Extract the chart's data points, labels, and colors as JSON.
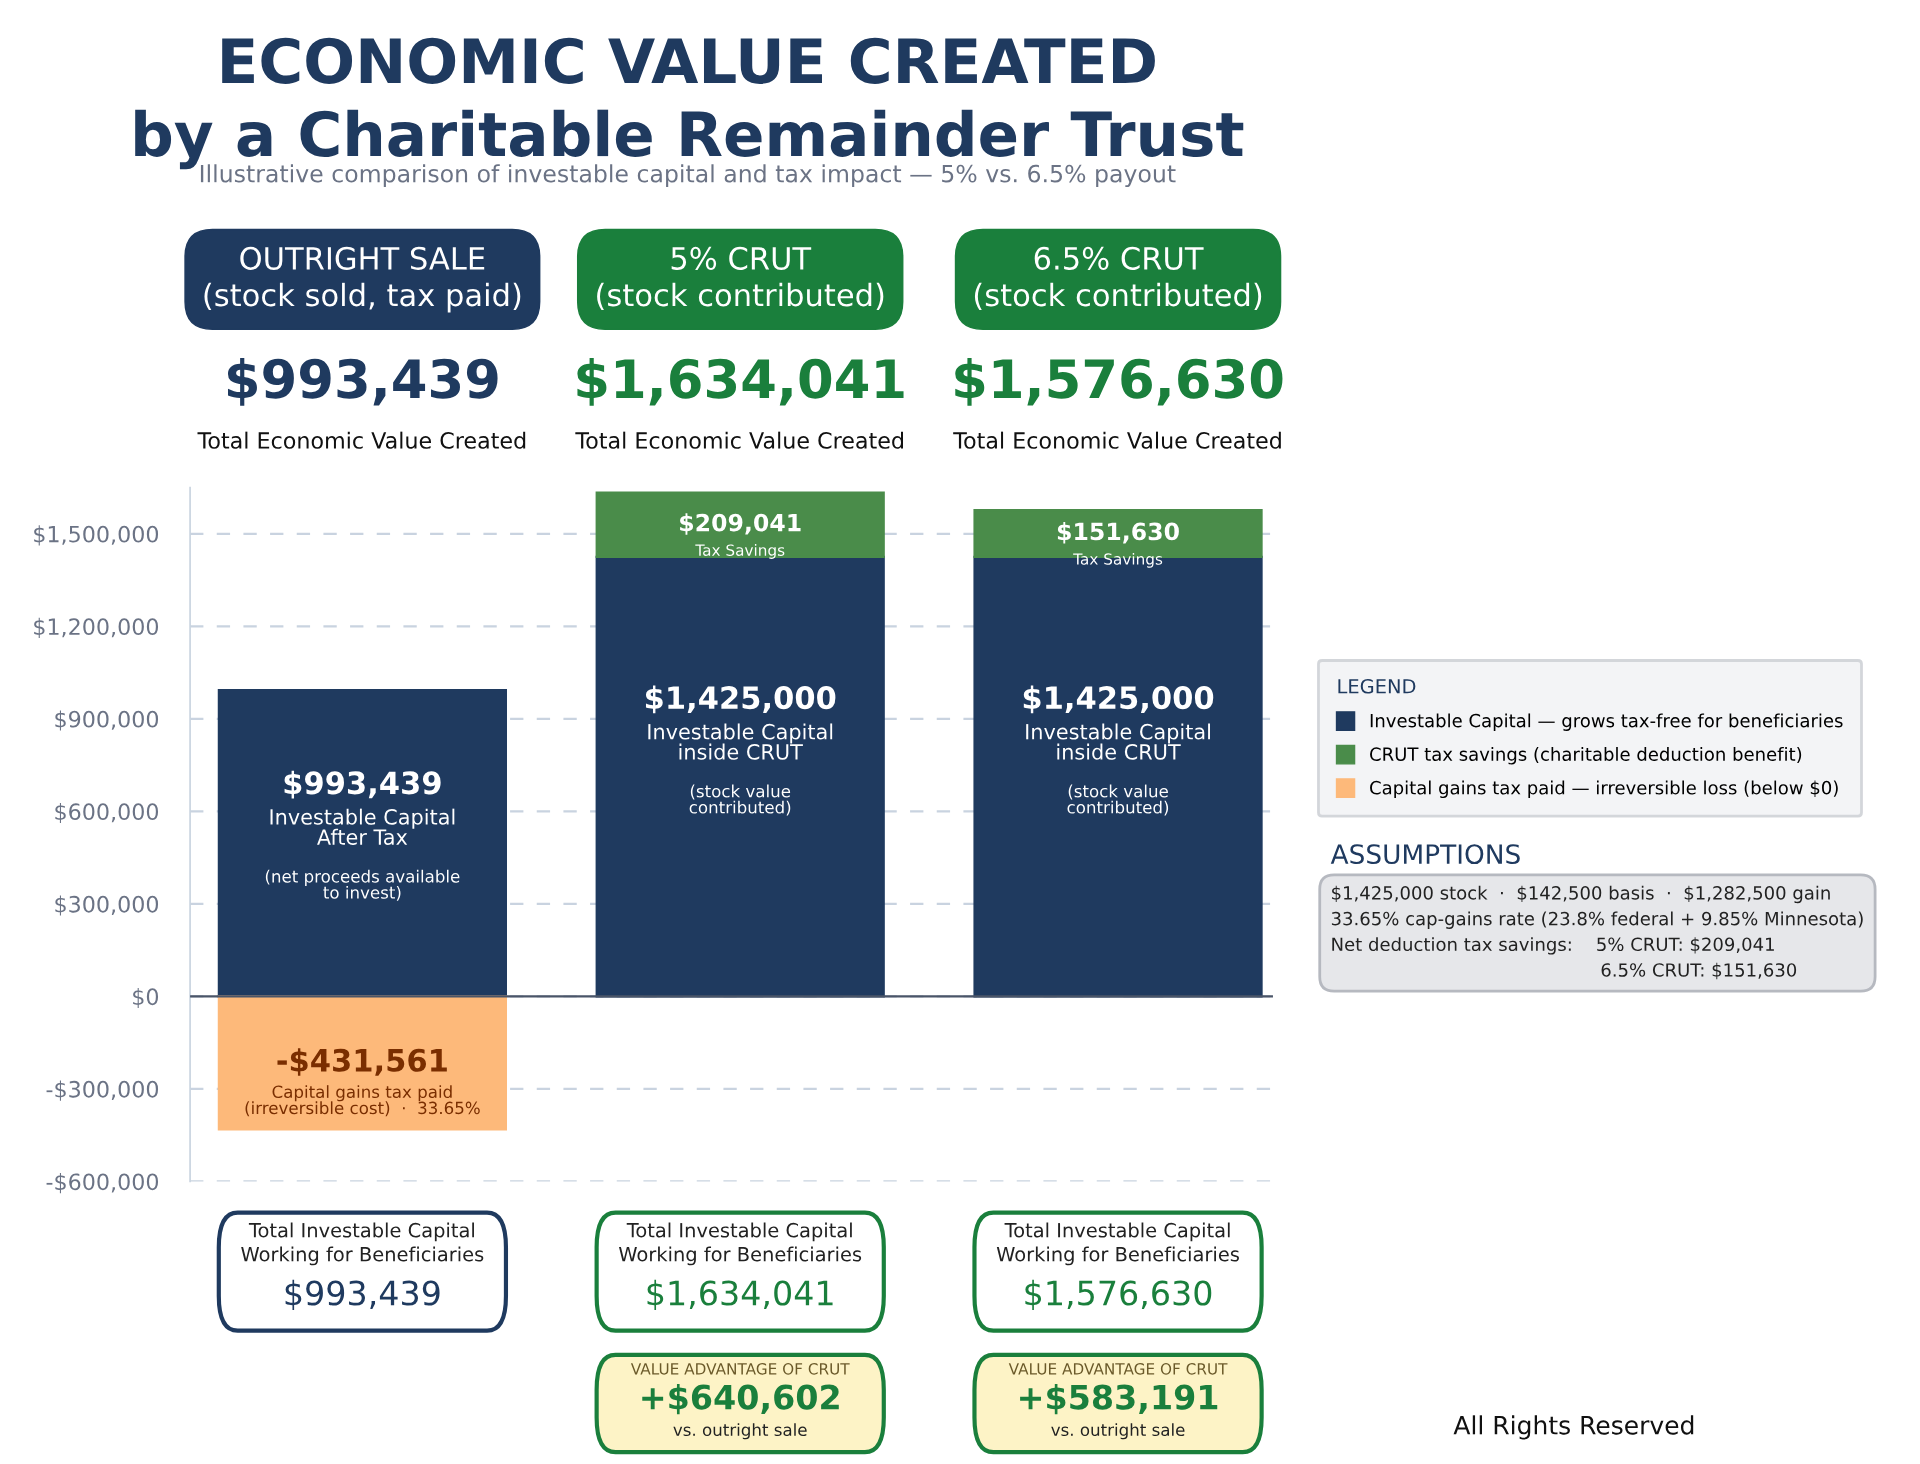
{
  "chart_data": {
    "type": "bar",
    "stacked": true,
    "title": "ECONOMIC VALUE CREATED\nby a Charitable Remainder Trust",
    "subtitle": "Illustrative comparison of investable capital and tax impact — 5% vs. 6.5% payout",
    "categories": [
      "OUTRIGHT SALE\n(stock sold, tax paid)",
      "5% CRUT\n(stock contributed)",
      "6.5% CRUT\n(stock contributed)"
    ],
    "series": [
      {
        "name": "Investable Capital — grows tax-free for beneficiaries",
        "color": "#1f3a5f",
        "values": [
          993439,
          1425000,
          1425000
        ],
        "value_labels": [
          "$993,439",
          "$1,425,000",
          "$1,425,000"
        ]
      },
      {
        "name": "CRUT tax savings (charitable deduction benefit)",
        "color": "#4a8c4a",
        "values": [
          null,
          209041,
          151630
        ],
        "value_labels": [
          null,
          "$209,041",
          "$151,630"
        ]
      },
      {
        "name": "Capital gains tax paid — irreversible loss (below $0)",
        "color": "#fdb97a",
        "values": [
          -431561,
          null,
          null
        ],
        "value_labels": [
          "-$431,561",
          null,
          null
        ]
      }
    ],
    "ylim": [
      -600000,
      1650000
    ],
    "yticks": [
      {
        "value": -600000,
        "label": "-$600,000"
      },
      {
        "value": -300000,
        "label": "-$300,000"
      },
      {
        "value": 0,
        "label": "$0"
      },
      {
        "value": 300000,
        "label": "$300,000"
      },
      {
        "value": 600000,
        "label": "$600,000"
      },
      {
        "value": 900000,
        "label": "$900,000"
      },
      {
        "value": 1200000,
        "label": "$1,200,000"
      },
      {
        "value": 1500000,
        "label": "$1,500,000"
      }
    ],
    "grid": "y",
    "legend": "right",
    "legend_title": "LEGEND",
    "annotations": [
      "Total Economic Value Created",
      "Investable Capital\nAfter Tax",
      "(net proceeds available\nto invest)",
      "Investable Capital\ninside CRUT",
      "(stock value\ncontributed)",
      "Tax Savings",
      "Capital gains tax paid\n(irreversible cost)  ·  33.65%",
      "Total Investable Capital\nWorking for Beneficiaries",
      "VALUE ADVANTAGE OF CRUT",
      "+$640,602",
      "+$583,191",
      "vs. outright sale",
      "ASSUMPTIONS",
      "$1,425,000 stock  ·  $142,500 basis  ·  $1,282,500 gain\n33.65% cap-gains rate (23.8% federal + 9.85% Minnesota)\nNet deduction tax savings:    5% CRUT: $209,041\n                                               6.5% CRUT: $151,630",
      "All Rights Reserved",
      "$993,439",
      "$1,634,041",
      "$1,576,630"
    ]
  }
}
